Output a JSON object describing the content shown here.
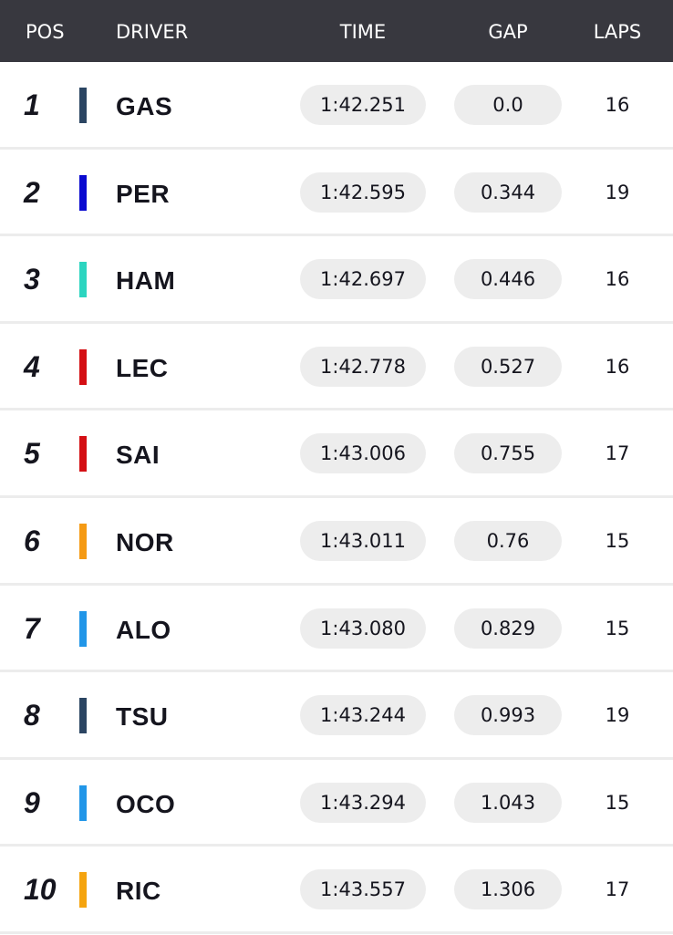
{
  "table": {
    "header": [
      "POS",
      "DRIVER",
      "TIME",
      "GAP",
      "LAPS"
    ],
    "rows": [
      {
        "pos": "1",
        "color": "#2b4562",
        "driver": "GAS",
        "time": "1:42.251",
        "gap": "0.0",
        "laps": "16"
      },
      {
        "pos": "2",
        "color": "#0a0ad0",
        "driver": "PER",
        "time": "1:42.595",
        "gap": "0.344",
        "laps": "19"
      },
      {
        "pos": "3",
        "color": "#2cd5c0",
        "driver": "HAM",
        "time": "1:42.697",
        "gap": "0.446",
        "laps": "16"
      },
      {
        "pos": "4",
        "color": "#d40f14",
        "driver": "LEC",
        "time": "1:42.778",
        "gap": "0.527",
        "laps": "16"
      },
      {
        "pos": "5",
        "color": "#d40f14",
        "driver": "SAI",
        "time": "1:43.006",
        "gap": "0.755",
        "laps": "17"
      },
      {
        "pos": "6",
        "color": "#f59a14",
        "driver": "NOR",
        "time": "1:43.011",
        "gap": "0.76",
        "laps": "15"
      },
      {
        "pos": "7",
        "color": "#2196e8",
        "driver": "ALO",
        "time": "1:43.080",
        "gap": "0.829",
        "laps": "15"
      },
      {
        "pos": "8",
        "color": "#2b4562",
        "driver": "TSU",
        "time": "1:43.244",
        "gap": "0.993",
        "laps": "19"
      },
      {
        "pos": "9",
        "color": "#2196e8",
        "driver": "OCO",
        "time": "1:43.294",
        "gap": "1.043",
        "laps": "15"
      },
      {
        "pos": "10",
        "color": "#f5a40f",
        "driver": "RIC",
        "time": "1:43.557",
        "gap": "1.306",
        "laps": "17"
      }
    ]
  }
}
